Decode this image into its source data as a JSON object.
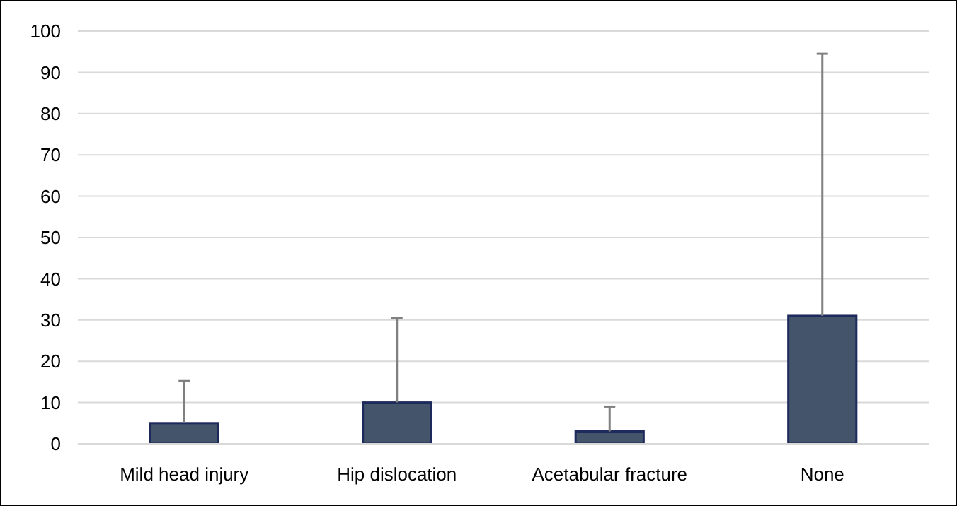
{
  "chart_data": {
    "type": "bar",
    "categories": [
      "Mild head injury",
      "Hip dislocation",
      "Acetabular fracture",
      "None"
    ],
    "values": [
      5,
      10,
      3,
      31
    ],
    "color": "#44546a",
    "errors": [
      [
        5,
        15.2
      ],
      [
        10,
        30.5
      ],
      [
        3,
        9
      ],
      [
        31,
        94.5
      ]
    ],
    "ylim": [
      0,
      100
    ],
    "yticks": [
      0,
      10,
      20,
      30,
      40,
      50,
      60,
      70,
      80,
      90,
      100
    ],
    "grid": "y"
  }
}
